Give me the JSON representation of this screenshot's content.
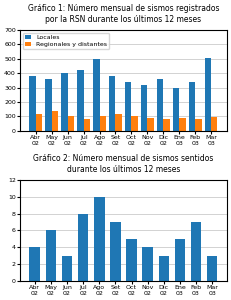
{
  "chart_data": [
    {
      "type": "bar",
      "title": "Gráfico 1: Número mensual de sismos registrados\npor la RSN durante los últimos 12 meses",
      "categories": [
        "Abr\n02",
        "May\n02",
        "Jun\n02",
        "Jul\n02",
        "Ago\n02",
        "Set\n02",
        "Oct\n02",
        "Nov\n02",
        "Dic\n02",
        "Ene\n03",
        "Feb\n03",
        "Mar\n03"
      ],
      "series": [
        {
          "name": "Locales",
          "values": [
            380,
            360,
            400,
            420,
            500,
            380,
            340,
            320,
            360,
            300,
            340,
            505
          ]
        },
        {
          "name": "Regionales y distantes",
          "values": [
            120,
            140,
            100,
            80,
            100,
            120,
            100,
            90,
            80,
            90,
            80,
            95
          ]
        }
      ],
      "ylim": [
        0,
        700
      ],
      "yticks": [
        0,
        100,
        200,
        300,
        400,
        500,
        600,
        700
      ],
      "grid": true,
      "legend": "upper left"
    },
    {
      "type": "bar",
      "title": "Gráfico 2: Número mensual de sismos sentidos\ndurante los últimos 12 meses",
      "categories": [
        "Abr\n02",
        "May\n02",
        "Jun\n02",
        "Jul\n02",
        "Ago\n02",
        "Set\n02",
        "Oct\n02",
        "Nov\n02",
        "Dic\n02",
        "Ene\n03",
        "Feb\n03",
        "Mar\n03"
      ],
      "values": [
        4,
        6,
        3,
        8,
        10,
        7,
        5,
        4,
        3,
        5,
        7,
        3
      ],
      "ylim": [
        0,
        12
      ],
      "yticks": [
        0,
        2,
        4,
        6,
        8,
        10,
        12
      ],
      "grid": true
    }
  ]
}
